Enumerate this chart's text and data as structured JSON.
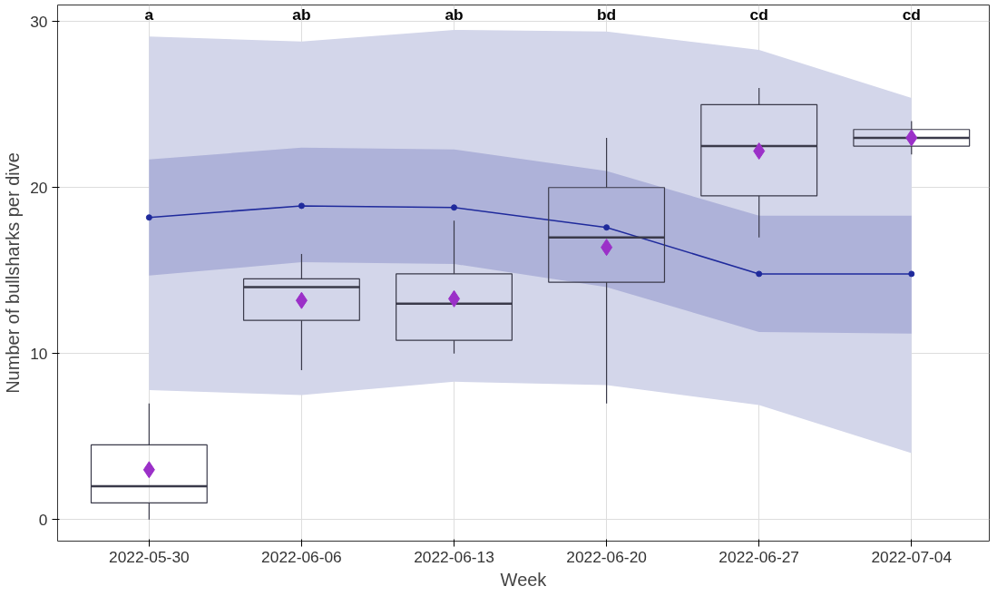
{
  "chart_data": {
    "type": "box",
    "xlabel": "Week",
    "ylabel": "Number of bullsharks per dive",
    "categories": [
      "2022-05-30",
      "2022-06-06",
      "2022-06-13",
      "2022-06-20",
      "2022-06-27",
      "2022-07-04"
    ],
    "ylim": [
      -1.3,
      31
    ],
    "yticks": [
      0,
      10,
      20,
      30
    ],
    "grid": true,
    "color": "#3a3a4a",
    "boxes": [
      {
        "low": 0,
        "q1": 1,
        "median": 2,
        "q3": 4.5,
        "high": 7
      },
      {
        "low": 9,
        "q1": 12,
        "median": 14,
        "q3": 14.5,
        "high": 16
      },
      {
        "low": 10,
        "q1": 10.8,
        "median": 13,
        "q3": 14.8,
        "high": 18
      },
      {
        "low": 7,
        "q1": 14.3,
        "median": 17,
        "q3": 20,
        "high": 23
      },
      {
        "low": 17,
        "q1": 19.5,
        "median": 22.5,
        "q3": 25,
        "high": 26
      },
      {
        "low": 22,
        "q1": 22.5,
        "median": 23,
        "q3": 23.5,
        "high": 24
      }
    ],
    "series": [
      {
        "type": "line",
        "color": "#d3d6ea",
        "values": [
          null,
          null,
          null,
          null,
          null,
          null
        ],
        "lower": [
          7.8,
          7.5,
          8.3,
          8.1,
          6.9,
          4.0
        ],
        "upper": [
          29.1,
          28.8,
          29.5,
          29.4,
          28.3,
          25.4
        ]
      },
      {
        "type": "line",
        "color": "#aeb2d9",
        "values": [
          null,
          null,
          null,
          null,
          null,
          null
        ],
        "lower": [
          14.7,
          15.5,
          15.4,
          14.0,
          11.3,
          11.2
        ],
        "upper": [
          21.7,
          22.4,
          22.3,
          21.0,
          18.3,
          18.3
        ]
      },
      {
        "type": "line",
        "color": "#1f2a9c",
        "marker": "circle",
        "values": [
          18.2,
          18.9,
          18.8,
          17.6,
          14.8,
          14.8
        ]
      },
      {
        "type": "scatter",
        "color": "#9b30c8",
        "marker": "diamond",
        "values": [
          3.0,
          13.2,
          13.3,
          16.4,
          22.2,
          23
        ]
      }
    ],
    "annotations": [
      "a",
      "ab",
      "ab",
      "bd",
      "cd",
      "cd"
    ]
  }
}
